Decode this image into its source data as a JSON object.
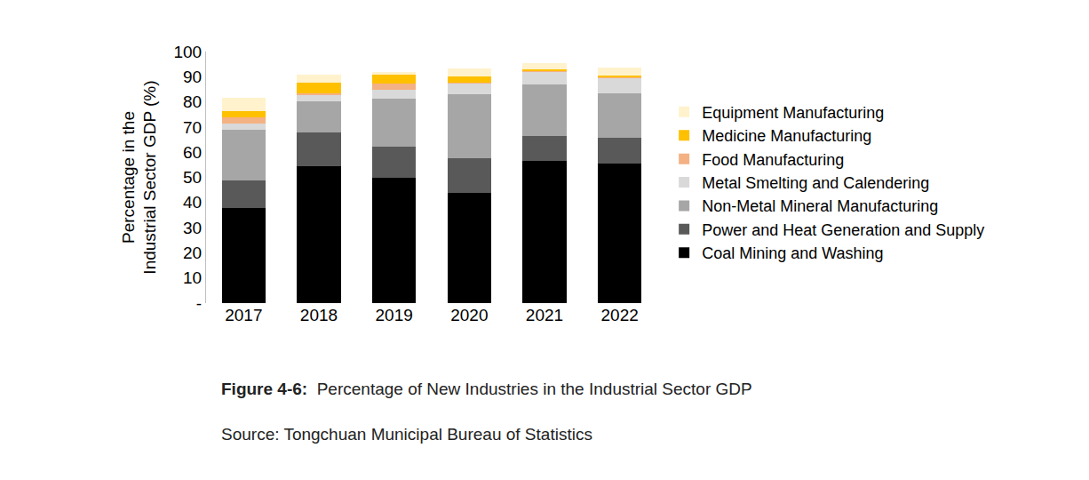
{
  "chart_data": {
    "type": "bar",
    "stacked": true,
    "figure_label": "Figure 4-6:",
    "title": "Percentage of New Industries in the Industrial Sector GDP",
    "annotations": [
      "Source: Tongchuan Municipal Bureau of Statistics"
    ],
    "y_label": "Percentage in the Industrial Sector GDP (%)",
    "categories": [
      "2017",
      "2018",
      "2019",
      "2020",
      "2021",
      "2022"
    ],
    "ylim": [
      0,
      100
    ],
    "yticks": [
      {
        "value": 0,
        "label": "-"
      },
      10,
      20,
      30,
      40,
      50,
      60,
      70,
      80,
      90,
      100
    ],
    "grid": false,
    "legend": "right",
    "series": [
      {
        "name": "Coal Mining and Washing",
        "color": "#000000",
        "values": [
          37.8,
          54.4,
          49.8,
          43.8,
          56.5,
          55.5
        ]
      },
      {
        "name": "Power and Heat Generation and Supply",
        "color": "#595959",
        "values": [
          11.0,
          13.4,
          12.4,
          13.8,
          9.9,
          10.2
        ]
      },
      {
        "name": "Non-Metal Mineral Manufacturing",
        "color": "#a6a6a6",
        "values": [
          20.1,
          12.4,
          19.1,
          25.4,
          20.5,
          17.7
        ]
      },
      {
        "name": "Metal Smelting and Calendering",
        "color": "#d9d9d9",
        "values": [
          2.5,
          2.5,
          3.5,
          4.3,
          5.0,
          6.0
        ]
      },
      {
        "name": "Food Manufacturing",
        "color": "#f4b183",
        "values": [
          2.5,
          0.8,
          2.5,
          0.3,
          0.3,
          0.2
        ]
      },
      {
        "name": "Medicine Manufacturing",
        "color": "#ffc000",
        "values": [
          2.4,
          4.1,
          3.5,
          2.5,
          0.7,
          0.9
        ]
      },
      {
        "name": "Equipment Manufacturing",
        "color": "#fff2cc",
        "values": [
          5.3,
          3.2,
          1.1,
          3.2,
          2.5,
          3.1
        ]
      }
    ]
  }
}
